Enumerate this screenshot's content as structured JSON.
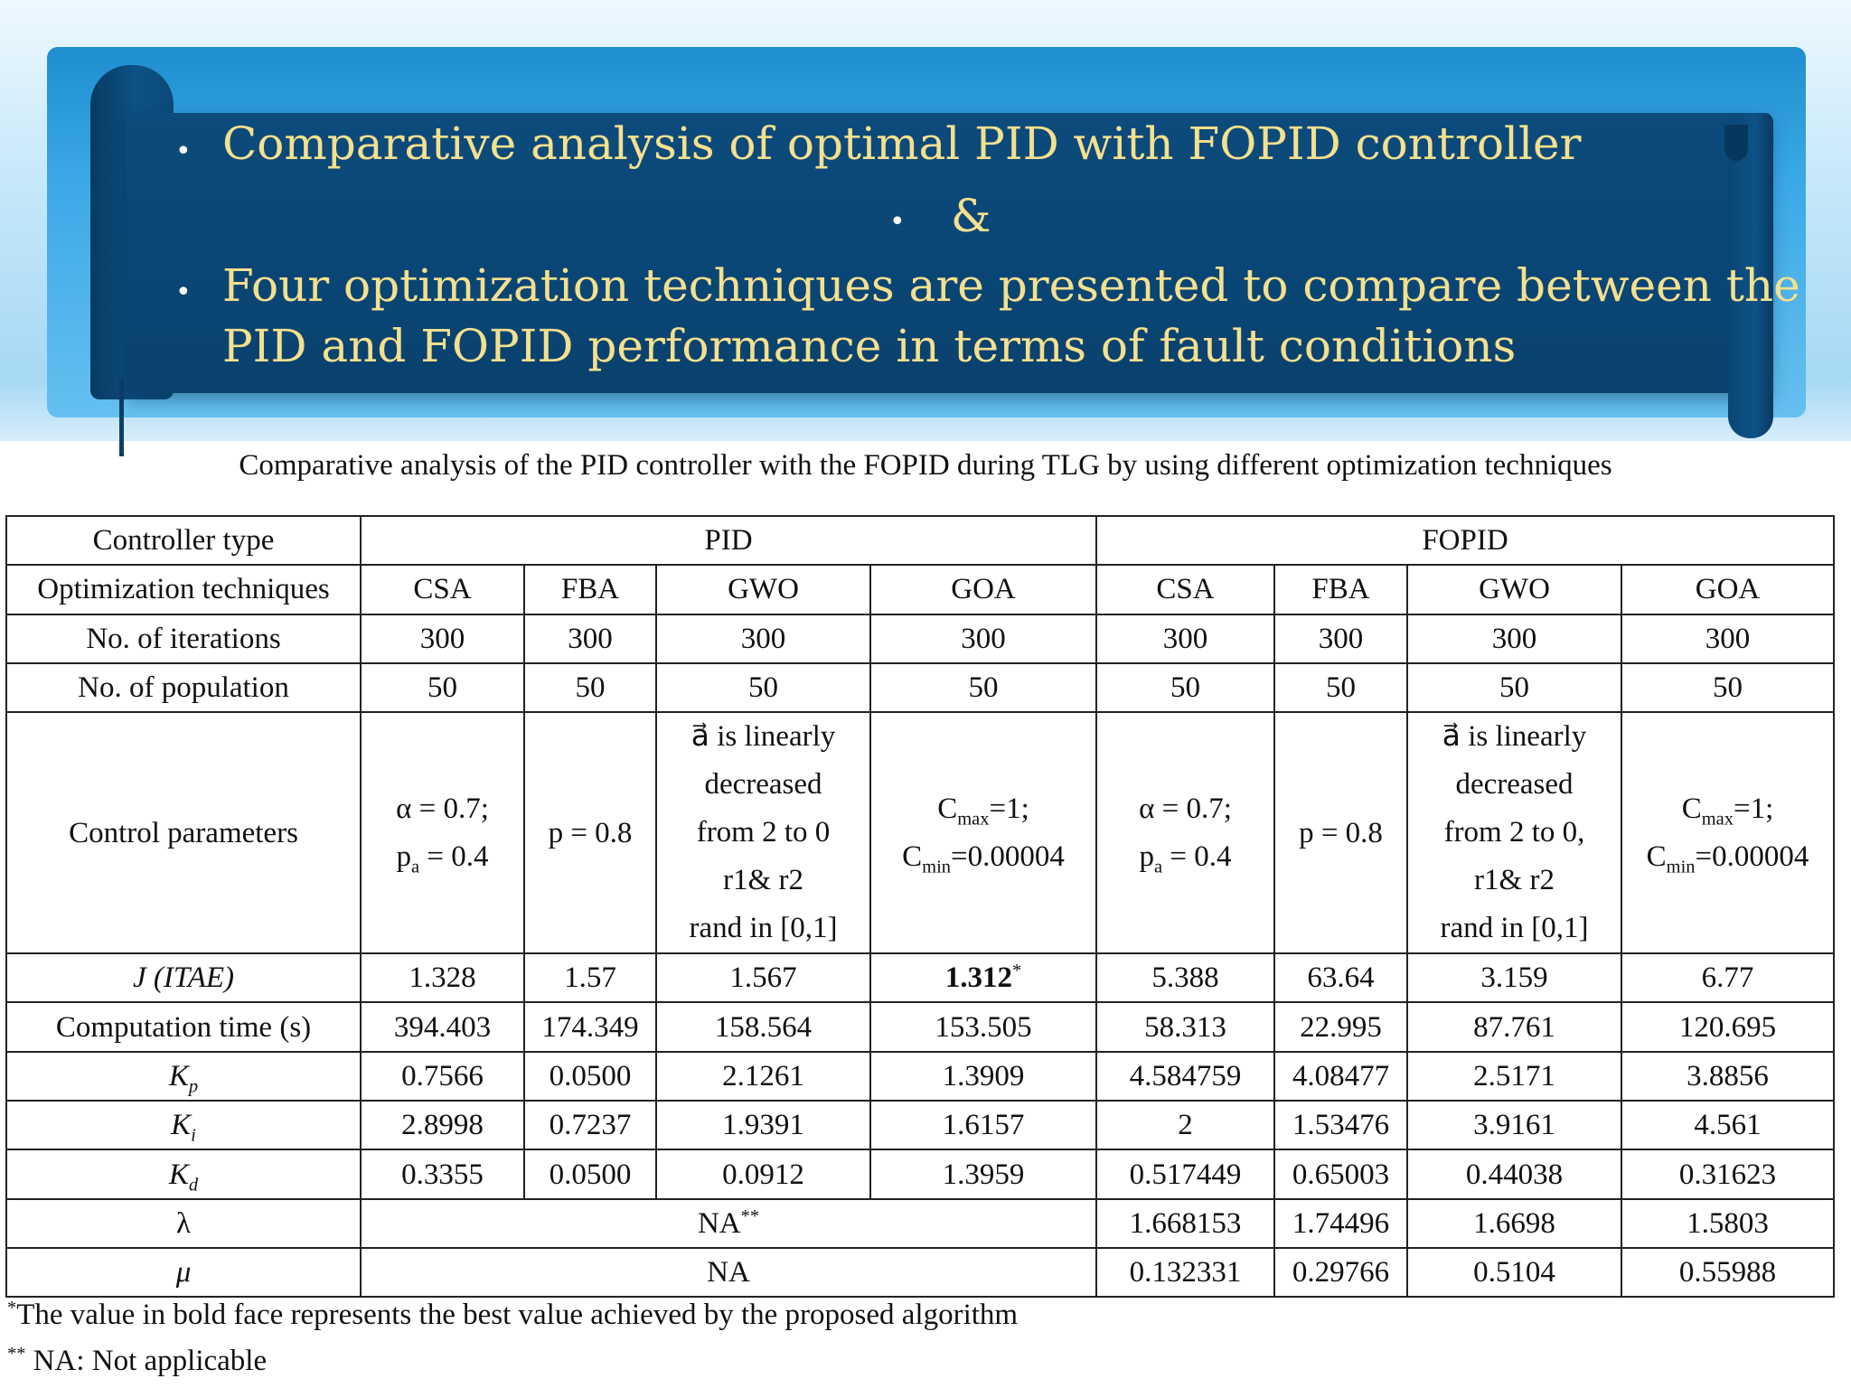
{
  "slide": {
    "bullets": [
      "Comparative analysis of optimal PID with FOPID controller",
      "&",
      "Four optimization techniques are presented to compare between the",
      "PID and FOPID performance in terms of fault conditions"
    ],
    "colors": {
      "banner": "#0b4a79",
      "bullet_text": "#f5e08e",
      "sky": "#9cd4f3"
    }
  },
  "table": {
    "caption": "Comparative analysis of the PID controller with the FOPID during TLG by using different optimization techniques",
    "controller_type_label": "Controller type",
    "pid_label": "PID",
    "fopid_label": "FOPID",
    "opt_label": "Optimization techniques",
    "techniques": [
      "CSA",
      "FBA",
      "GWO",
      "GOA",
      "CSA",
      "FBA",
      "GWO",
      "GOA"
    ],
    "iter_label": "No. of iterations",
    "iterations": [
      "300",
      "300",
      "300",
      "300",
      "300",
      "300",
      "300",
      "300"
    ],
    "pop_label": "No. of population",
    "population": [
      "50",
      "50",
      "50",
      "50",
      "50",
      "50",
      "50",
      "50"
    ],
    "control_label": "Control parameters",
    "control": {
      "csa_l1": "α = 0.7;",
      "csa_l2_a": "p",
      "csa_l2_sub": "a",
      "csa_l2_b": " = 0.4",
      "fba": "p = 0.8",
      "gwo_pid": [
        "a⃗  is linearly",
        "decreased",
        "from 2 to 0",
        "r1& r2",
        "rand in [0,1]"
      ],
      "gwo_fopid": [
        "a⃗  is linearly",
        "decreased",
        "from 2 to 0,",
        "r1& r2",
        "rand in [0,1]"
      ],
      "goa_l1_a": "C",
      "goa_l1_sub": "max",
      "goa_l1_b": "=1;",
      "goa_l2_a": "C",
      "goa_l2_sub": "min",
      "goa_l2_b": "=0.00004"
    },
    "j_label": "J (ITAE)",
    "j": [
      "1.328",
      "1.57",
      "1.567",
      "1.312",
      "5.388",
      "63.64",
      "3.159",
      "6.77"
    ],
    "j_best_mark": "*",
    "time_label": "Computation time (s)",
    "time": [
      "394.403",
      "174.349",
      "158.564",
      "153.505",
      "58.313",
      "22.995",
      "87.761",
      "120.695"
    ],
    "kp_label": "K",
    "kp_sub": "p",
    "kp": [
      "0.7566",
      "0.0500",
      "2.1261",
      "1.3909",
      "4.584759",
      "4.08477",
      "2.5171",
      "3.8856"
    ],
    "ki_label": "K",
    "ki_sub": "i",
    "ki": [
      "2.8998",
      "0.7237",
      "1.9391",
      "1.6157",
      "2",
      "1.53476",
      "3.9161",
      "4.561"
    ],
    "kd_label": "K",
    "kd_sub": "d",
    "kd": [
      "0.3355",
      "0.0500",
      "0.0912",
      "1.3959",
      "0.517449",
      "0.65003",
      "0.44038",
      "0.31623"
    ],
    "lambda_label": "λ",
    "lambda_pid": "NA",
    "lambda_pid_mark": "**",
    "lambda_fopid": [
      "1.668153",
      "1.74496",
      "1.6698",
      "1.5803"
    ],
    "mu_label": "μ",
    "mu_pid": "NA",
    "mu_fopid": [
      "0.132331",
      "0.29766",
      "0.5104",
      "0.55988"
    ]
  },
  "footnotes": {
    "f1_mark": "*",
    "f1_text": "The value in bold face represents the best value achieved by the proposed algorithm",
    "f2_mark": "**",
    "f2_text": " NA: Not applicable"
  }
}
